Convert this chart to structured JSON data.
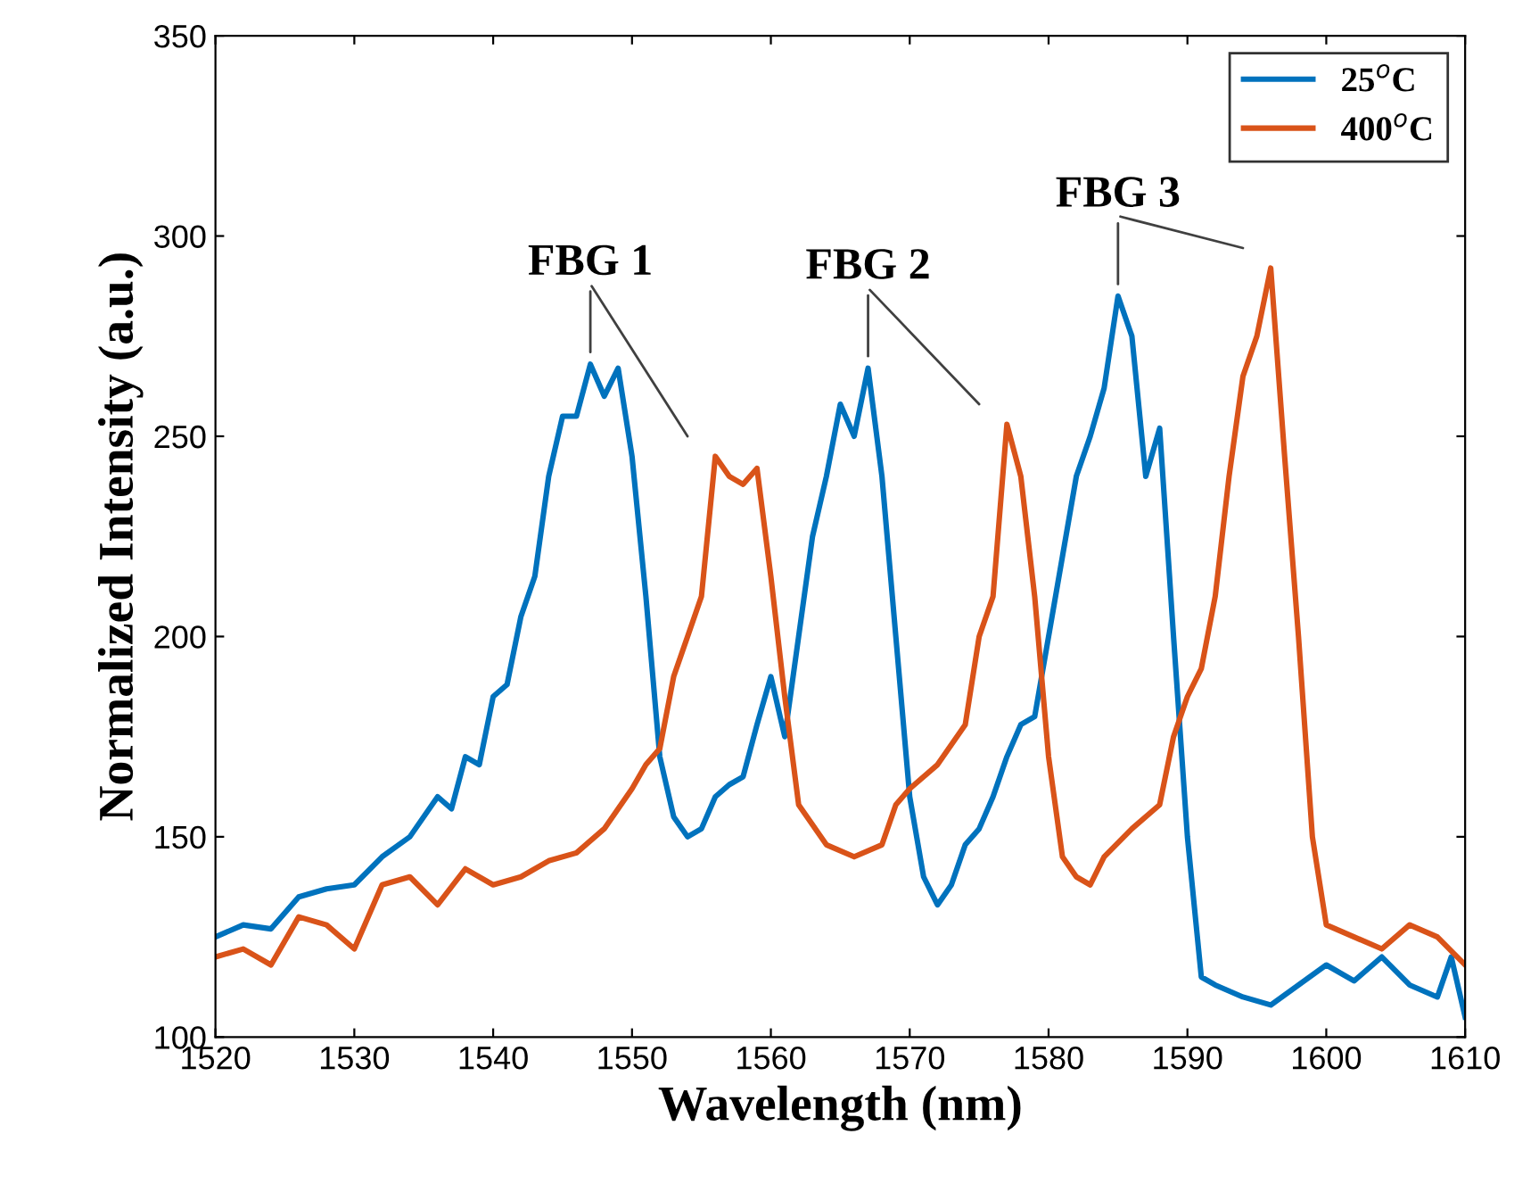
{
  "chart_data": {
    "type": "line",
    "xlabel": "Wavelength (nm)",
    "ylabel": "Normalized Intensity (a.u.)",
    "xlim": [
      1520,
      1610
    ],
    "ylim": [
      100,
      350
    ],
    "xticks": [
      1520,
      1530,
      1540,
      1550,
      1560,
      1570,
      1580,
      1590,
      1600,
      1610
    ],
    "yticks": [
      100,
      150,
      200,
      250,
      300,
      350
    ],
    "grid": false,
    "legend": "top right",
    "marker": "none",
    "line_style": "solid",
    "series": [
      {
        "name": "25$^{o}$C",
        "color": "#0072bd",
        "x": [
          1520,
          1522,
          1524,
          1526,
          1528,
          1530,
          1532,
          1534,
          1536,
          1537,
          1538,
          1539,
          1540,
          1541,
          1542,
          1543,
          1544,
          1545,
          1546,
          1547,
          1548,
          1549,
          1550,
          1551,
          1552,
          1553,
          1554,
          1555,
          1556,
          1557,
          1558,
          1559,
          1560,
          1561,
          1562,
          1563,
          1564,
          1565,
          1566,
          1567,
          1568,
          1569,
          1570,
          1571,
          1572,
          1573,
          1574,
          1575,
          1576,
          1577,
          1578,
          1579,
          1580,
          1581,
          1582,
          1583,
          1584,
          1585,
          1586,
          1587,
          1588,
          1589,
          1590,
          1591,
          1592,
          1594,
          1596,
          1598,
          1600,
          1602,
          1604,
          1606,
          1608,
          1609,
          1610
        ],
        "values": [
          125,
          128,
          127,
          135,
          137,
          138,
          145,
          150,
          160,
          157,
          170,
          168,
          185,
          188,
          205,
          215,
          240,
          255,
          255,
          268,
          260,
          267,
          245,
          210,
          170,
          155,
          150,
          152,
          160,
          163,
          165,
          178,
          190,
          175,
          200,
          225,
          240,
          258,
          250,
          267,
          240,
          200,
          160,
          140,
          133,
          138,
          148,
          152,
          160,
          170,
          178,
          180,
          200,
          220,
          240,
          250,
          262,
          285,
          275,
          240,
          252,
          200,
          150,
          115,
          113,
          110,
          108,
          113,
          118,
          114,
          120,
          113,
          110,
          120,
          105
        ]
      },
      {
        "name": "400$^{o}$C",
        "color": "#d95319",
        "x": [
          1520,
          1522,
          1524,
          1526,
          1528,
          1530,
          1532,
          1534,
          1536,
          1538,
          1540,
          1542,
          1544,
          1546,
          1548,
          1550,
          1551,
          1552,
          1553,
          1554,
          1555,
          1556,
          1557,
          1558,
          1559,
          1560,
          1561,
          1562,
          1564,
          1566,
          1568,
          1569,
          1570,
          1572,
          1574,
          1575,
          1576,
          1577,
          1578,
          1579,
          1580,
          1581,
          1582,
          1583,
          1584,
          1586,
          1588,
          1589,
          1590,
          1591,
          1592,
          1593,
          1594,
          1595,
          1596,
          1597,
          1598,
          1599,
          1600,
          1602,
          1604,
          1606,
          1608,
          1610
        ],
        "values": [
          120,
          122,
          118,
          130,
          128,
          122,
          138,
          140,
          133,
          142,
          138,
          140,
          144,
          146,
          152,
          162,
          168,
          172,
          190,
          200,
          210,
          245,
          240,
          238,
          242,
          215,
          185,
          158,
          148,
          145,
          148,
          158,
          162,
          168,
          178,
          200,
          210,
          253,
          240,
          210,
          170,
          145,
          140,
          138,
          145,
          152,
          158,
          175,
          185,
          192,
          210,
          240,
          265,
          275,
          292,
          245,
          200,
          150,
          128,
          125,
          122,
          128,
          125,
          118
        ]
      }
    ],
    "annotations": [
      {
        "text": "FBG 1",
        "x": 1547,
        "y": 268
      },
      {
        "text": "FBG 2",
        "x": 1567,
        "y": 267
      },
      {
        "text": "FBG 3",
        "x": 1585,
        "y": 285
      }
    ]
  }
}
